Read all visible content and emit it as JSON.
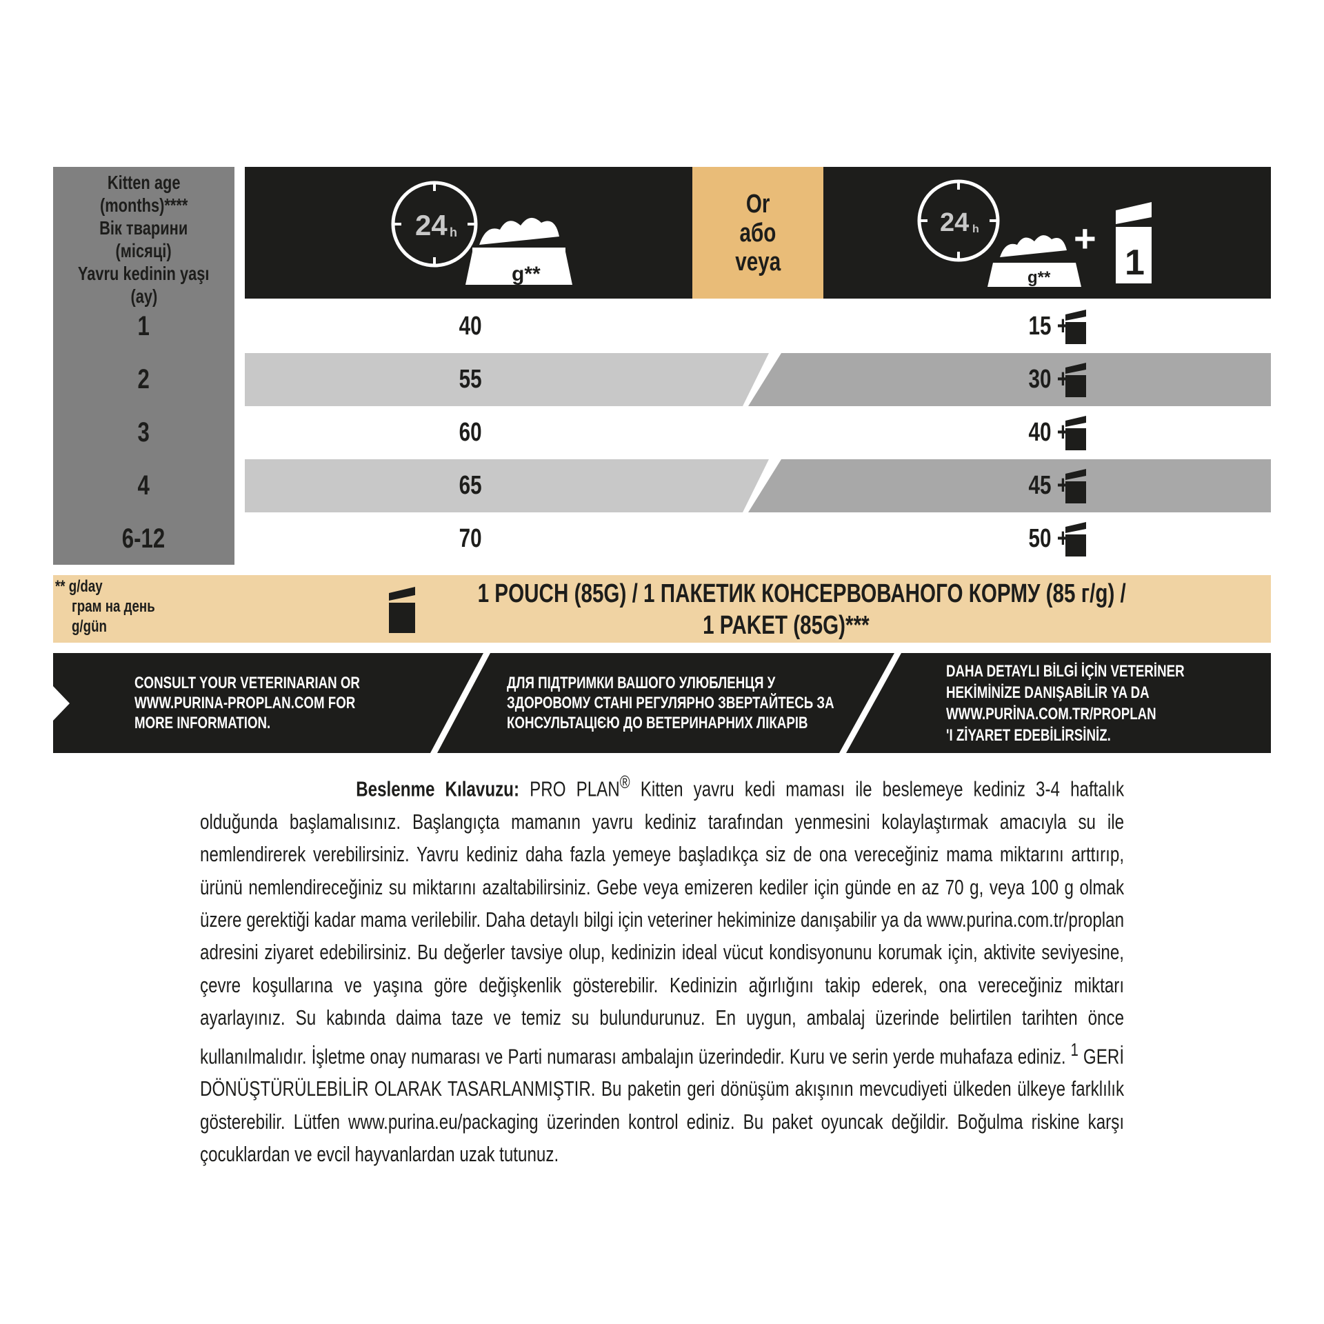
{
  "colors": {
    "dark": "#1d1d1b",
    "gold": "#e9bc78",
    "beige": "#f0d3a3",
    "age_column": "#808080",
    "row_light": "#c8c8c8",
    "row_dark": "#a8a8a8"
  },
  "header": {
    "age_label": [
      "Kitten age",
      "(months)****",
      "Вік тварини",
      "(місяці)",
      "Yavru kedinin yaşı",
      "(ay)"
    ],
    "dry_icon": {
      "clock": "24",
      "clock_unit": "h",
      "bowl": "g**"
    },
    "or_label": [
      "Or",
      "або",
      "veya"
    ],
    "mixed_icon": {
      "clock": "24",
      "clock_unit": "h",
      "bowl": "g**",
      "plus": "+",
      "pouch": "1"
    }
  },
  "rows": [
    {
      "age": "1",
      "dry": "40",
      "mixed": "15 +"
    },
    {
      "age": "2",
      "dry": "55",
      "mixed": "30 +"
    },
    {
      "age": "3",
      "dry": "60",
      "mixed": "40 +"
    },
    {
      "age": "4",
      "dry": "65",
      "mixed": "45 +"
    },
    {
      "age": "6-12",
      "dry": "70",
      "mixed": "50 +"
    }
  ],
  "footnote": {
    "units": [
      "** g/day",
      "грам на день",
      "g/gün"
    ],
    "pouch_line1": "1 POUCH (85G) / 1 ПАКЕТИК КОНСЕРВОВАНОГО КОРМУ (85 г/g) /",
    "pouch_line2": "1 PAKET (85G)***"
  },
  "info": {
    "en": [
      "CONSULT YOUR VETERINARIAN OR",
      "WWW.PURINA-PROPLAN.COM FOR",
      "MORE INFORMATION."
    ],
    "uk": [
      "ДЛЯ ПІДТРИМКИ ВАШОГО УЛЮБЛЕНЦЯ У",
      "ЗДОРОВОМУ СТАНІ РЕГУЛЯРНО ЗВЕРТАЙТЕСЬ ЗА",
      "КОНСУЛЬТАЦІЄЮ ДО ВЕТЕРИНАРНИХ ЛІКАРІВ"
    ],
    "tr": [
      "DAHA DETAYLI BİLGİ İÇİN VETERİNER",
      "HEKİMİNİZE DANIŞABİLİR YA DA",
      "WWW.PURİNA.COM.TR/PROPLAN",
      "'I ZİYARET EDEBİLİRSİNİZ."
    ]
  },
  "paragraph": {
    "title": "Beslenme Kılavuzu:",
    "brand": " PRO PLAN",
    "reg": "®",
    "text1": " Kitten yavru kedi maması ile beslemeye kediniz 3-4 haftalık olduğunda başlamalısınız. Başlangıçta mamanın yavru kediniz tarafından yenmesini kolaylaştırmak amacıyla su ile nemlendirerek verebilirsiniz. Yavru kediniz daha fazla yemeye başladıkça siz de ona vereceğiniz mama miktarını arttırıp, ürünü nemlendireceğiniz su miktarını azaltabilirsiniz. Gebe veya emizeren kediler için günde en az 70 g, veya 100 g olmak üzere gerektiği kadar mama verilebilir. Daha detaylı bilgi için veteriner hekiminize danışabilir ya da www.purina.com.tr/proplan adresini ziyaret edebilirsiniz. Bu değerler tavsiye olup, kedinizin ideal vücut kondisyonunu korumak için, aktivite seviyesine, çevre koşullarına ve yaşına göre değişkenlik gösterebilir. Kedinizin ağırlığını takip ederek, ona vereceğiniz miktarı ayarlayınız. Su kabında daima taze ve temiz su bulundurunuz. En uygun, ambalaj üzerinde belirtilen tarihten önce kullanılmalıdır. İşletme onay numarası ve Parti numarası ambalajın üzerindedir. Kuru ve serin yerde muhafaza ediniz. ",
    "sup": "1",
    "text2": " GERİ DÖNÜŞTÜRÜLEBİLİR OLARAK TASARLANMIŞTIR. Bu paketin geri dönüşüm akışının mevcudiyeti ülkeden ülkeye farklılık gösterebilir. Lütfen www.purina.eu/packaging üzerinden kontrol ediniz. Bu paket oyuncak değildir. Boğulma riskine karşı çocuklardan ve evcil hayvanlardan uzak tutunuz."
  }
}
